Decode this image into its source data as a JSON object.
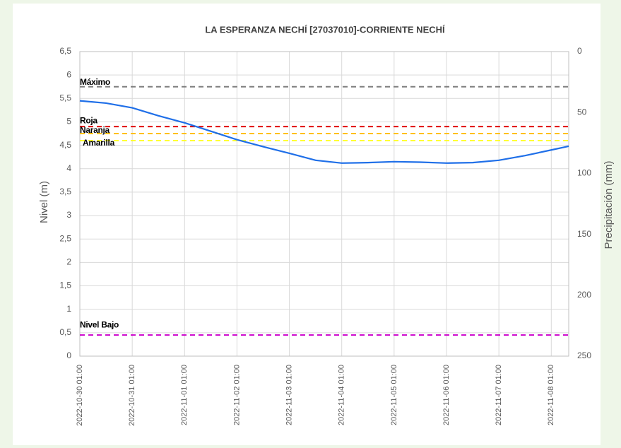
{
  "chart_data": {
    "type": "line",
    "title": "LA ESPERANZA NECHÍ [27037010]-CORRIENTE NECHÍ",
    "y_label": "Nivel (m)",
    "y2_label": "Precipitación (mm)",
    "xlim": [
      "2022-10-30 01:00",
      "2022-11-08 09:00"
    ],
    "xticks": [
      "2022-10-30 01:00",
      "2022-10-31 01:00",
      "2022-11-01 01:00",
      "2022-11-02 01:00",
      "2022-11-03 01:00",
      "2022-11-04 01:00",
      "2022-11-05 01:00",
      "2022-11-06 01:00",
      "2022-11-07 01:00",
      "2022-11-08 01:00"
    ],
    "ylim": [
      0,
      6.5
    ],
    "yticks": [
      0,
      {
        "value": 0.5,
        "label": "0,5"
      },
      1,
      {
        "value": 1.5,
        "label": "1,5"
      },
      2,
      {
        "value": 2.5,
        "label": "2,5"
      },
      3,
      {
        "value": 3.5,
        "label": "3,5"
      },
      4,
      {
        "value": 4.5,
        "label": "4,5"
      },
      5,
      {
        "value": 5.5,
        "label": "5,5"
      },
      6,
      {
        "value": 6.5,
        "label": "6,5"
      }
    ],
    "y2lim": [
      250,
      0
    ],
    "y2ticks": [
      0,
      50,
      100,
      150,
      200,
      250
    ],
    "grid": true,
    "series": [
      {
        "color": "#1f6fe8",
        "x": [
          "2022-10-30 01:00",
          "2022-10-30 13:00",
          "2022-10-31 01:00",
          "2022-10-31 13:00",
          "2022-11-01 01:00",
          "2022-11-01 13:00",
          "2022-11-02 01:00",
          "2022-11-02 13:00",
          "2022-11-03 01:00",
          "2022-11-03 13:00",
          "2022-11-04 01:00",
          "2022-11-04 13:00",
          "2022-11-05 01:00",
          "2022-11-05 13:00",
          "2022-11-06 01:00",
          "2022-11-06 13:00",
          "2022-11-07 01:00",
          "2022-11-07 13:00",
          "2022-11-08 01:00",
          "2022-11-08 09:00"
        ],
        "values": [
          5.45,
          5.4,
          5.3,
          5.13,
          4.98,
          4.8,
          4.62,
          4.47,
          4.33,
          4.18,
          4.12,
          4.13,
          4.15,
          4.14,
          4.12,
          4.13,
          4.18,
          4.28,
          4.4,
          4.48
        ]
      }
    ],
    "thresholds": [
      {
        "name": "Máximo",
        "value": 5.75,
        "color": "#7f7f7f"
      },
      {
        "name": "Roja",
        "value": 4.9,
        "color": "#e00000"
      },
      {
        "name": "Naranja",
        "value": 4.75,
        "color": "#ffc000"
      },
      {
        "name": "Amarilla",
        "value": 4.6,
        "color": "#ffff33"
      },
      {
        "name": "Nivel Bajo",
        "value": 0.45,
        "color": "#cc00cc"
      }
    ]
  }
}
